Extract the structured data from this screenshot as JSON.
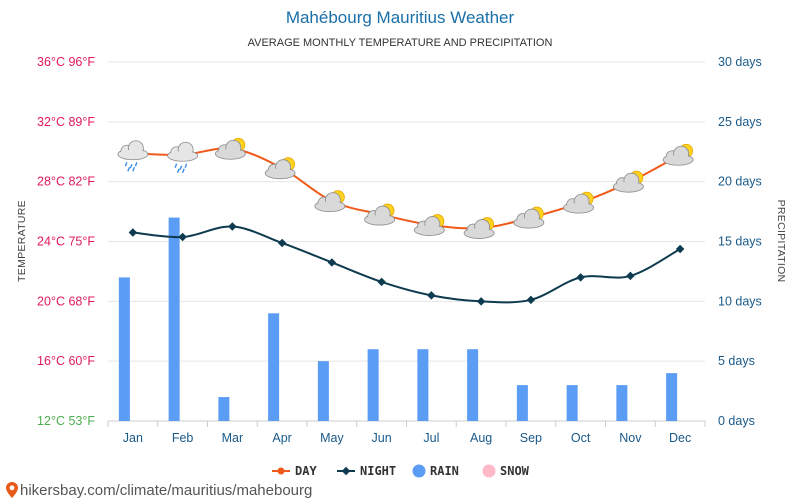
{
  "header": {
    "title": "Mahébourg Mauritius Weather",
    "subtitle": "AVERAGE MONTHLY TEMPERATURE AND PRECIPITATION"
  },
  "footer": {
    "source_text": "hikersbay.com/climate/mauritius/mahebourg"
  },
  "colors": {
    "day": "#f05a1a",
    "night": "#0e3b4f",
    "rain": "#5b9cf5",
    "snow": "#ffb8c8",
    "left_axis_warm": "#e0195f",
    "left_axis_cool": "#4caf50",
    "right_axis": "#1a5a8a",
    "grid": "#e6e6e6"
  },
  "chart_data": {
    "type": "line",
    "categories": [
      "Jan",
      "Feb",
      "Mar",
      "Apr",
      "May",
      "Jun",
      "Jul",
      "Aug",
      "Sep",
      "Oct",
      "Nov",
      "Dec"
    ],
    "ylabel": "TEMPERATURE",
    "y2label": "PRECIPITATION",
    "ylim": [
      12,
      36
    ],
    "y2lim": [
      0,
      30
    ],
    "left_ticks": [
      {
        "value": 36,
        "label": "36°C 96°F"
      },
      {
        "value": 32,
        "label": "32°C 89°F"
      },
      {
        "value": 28,
        "label": "28°C 82°F"
      },
      {
        "value": 24,
        "label": "24°C 75°F"
      },
      {
        "value": 20,
        "label": "20°C 68°F"
      },
      {
        "value": 16,
        "label": "16°C 60°F"
      },
      {
        "value": 12,
        "label": "12°C 53°F"
      }
    ],
    "right_ticks": [
      {
        "value": 30,
        "label": "30 days"
      },
      {
        "value": 25,
        "label": "25 days"
      },
      {
        "value": 20,
        "label": "20 days"
      },
      {
        "value": 15,
        "label": "15 days"
      },
      {
        "value": 10,
        "label": "10 days"
      },
      {
        "value": 5,
        "label": "5 days"
      },
      {
        "value": 0,
        "label": "0 days"
      }
    ],
    "series": [
      {
        "name": "DAY",
        "kind": "line",
        "axis": "left",
        "values": [
          29.9,
          29.8,
          30.2,
          28.9,
          26.7,
          25.8,
          25.1,
          24.9,
          25.6,
          26.6,
          28.0,
          29.8
        ]
      },
      {
        "name": "NIGHT",
        "kind": "line",
        "axis": "left",
        "values": [
          24.6,
          24.3,
          25.0,
          23.9,
          22.6,
          21.3,
          20.4,
          20.0,
          20.1,
          21.6,
          21.7,
          23.5
        ]
      },
      {
        "name": "RAIN",
        "kind": "bar",
        "axis": "right",
        "values": [
          12,
          17,
          2,
          9,
          5,
          6,
          6,
          6,
          3,
          3,
          3,
          4
        ]
      },
      {
        "name": "SNOW",
        "kind": "bar",
        "axis": "right",
        "values": [
          0,
          0,
          0,
          0,
          0,
          0,
          0,
          0,
          0,
          0,
          0,
          0
        ]
      }
    ],
    "weather_icons": [
      "rain-cloud-icon",
      "rain-cloud-icon",
      "partly-sunny-icon",
      "partly-sunny-icon",
      "partly-sunny-icon",
      "partly-sunny-icon",
      "partly-sunny-icon",
      "partly-sunny-icon",
      "partly-sunny-icon",
      "partly-sunny-icon",
      "partly-sunny-icon",
      "partly-sunny-icon"
    ],
    "grid": true,
    "legend_position": "bottom-center"
  }
}
